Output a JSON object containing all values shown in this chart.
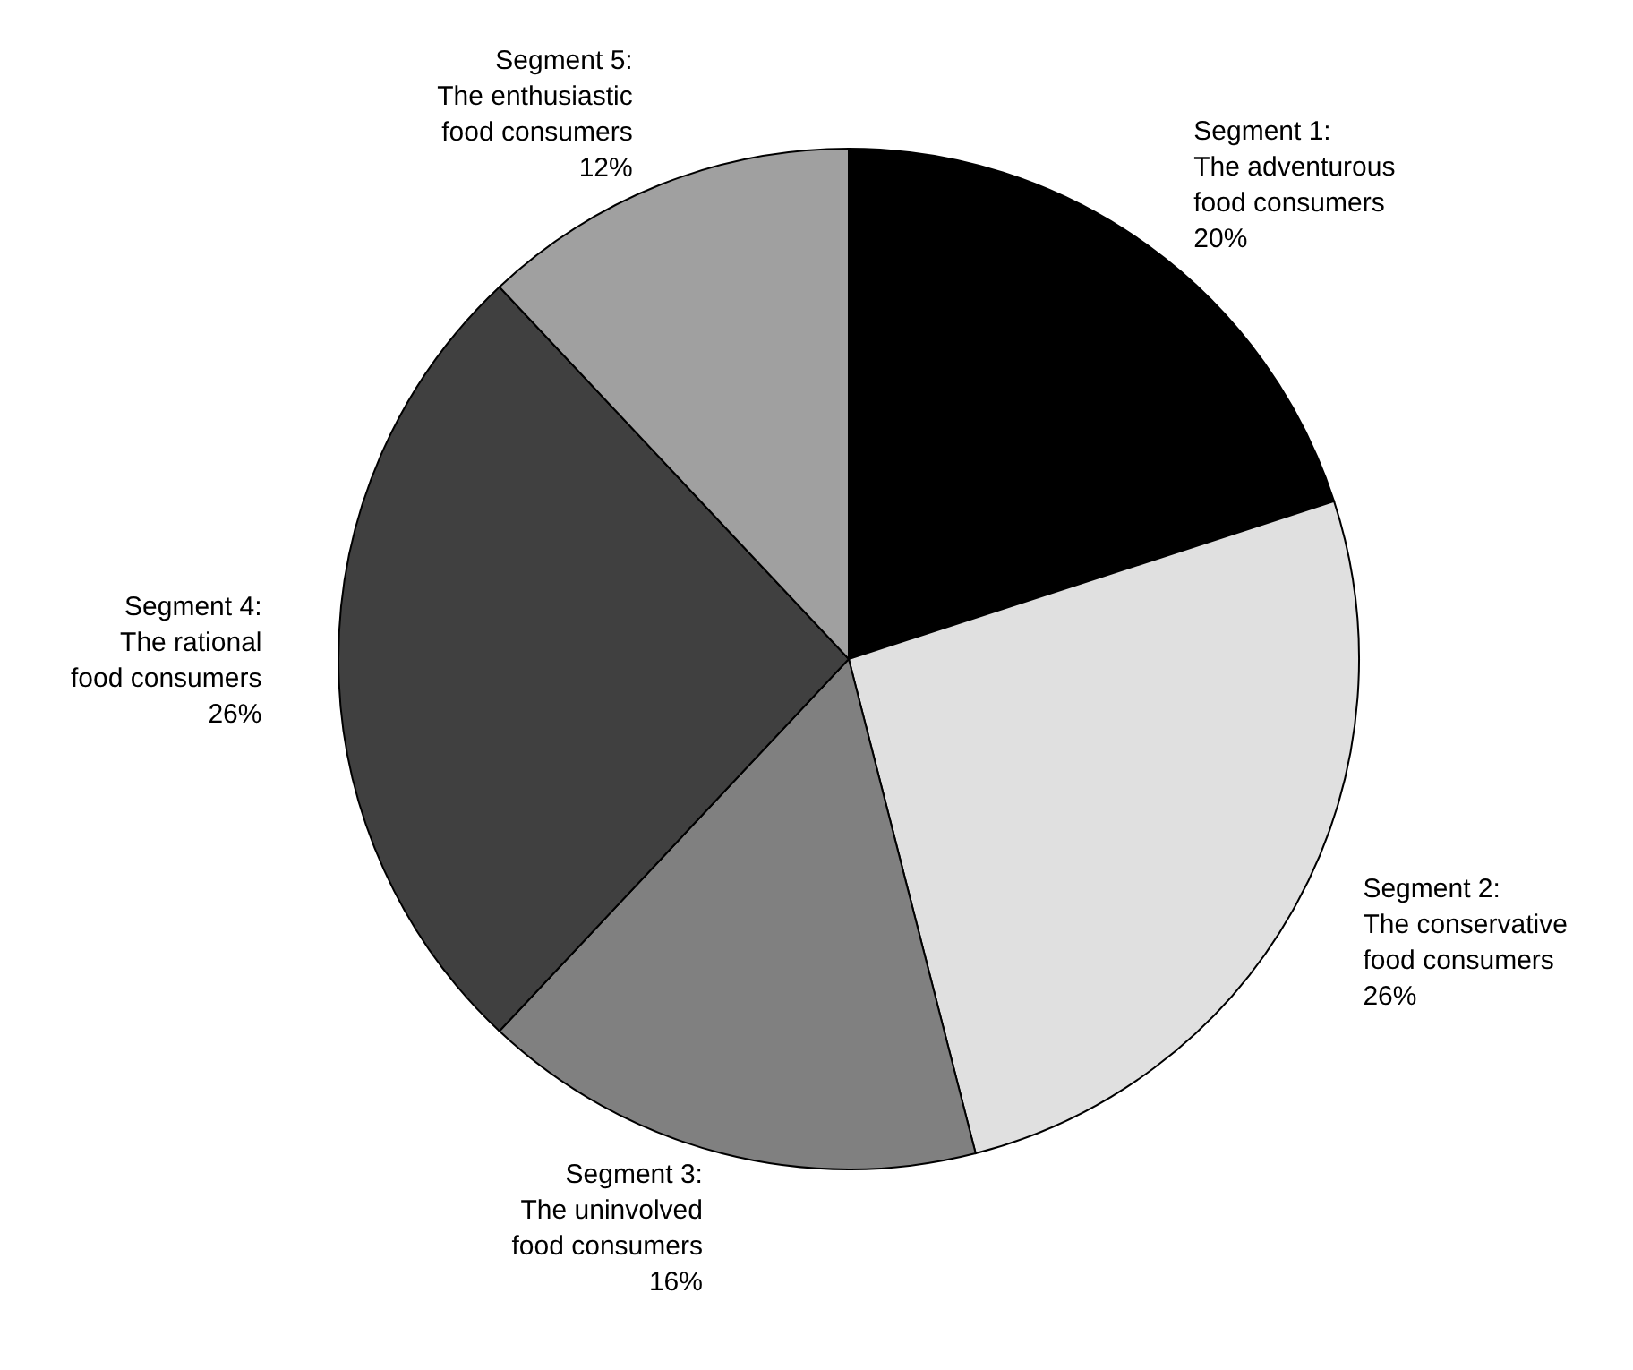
{
  "chart_data": {
    "type": "pie",
    "categories": [
      "Segment 1:\nThe adventurous\nfood consumers",
      "Segment 2:\nThe conservative\nfood consumers",
      "Segment 3:\nThe uninvolved\nfood consumers",
      "Segment 4:\nThe rational\nfood consumers",
      "Segment 5:\nThe enthusiastic\nfood consumers"
    ],
    "values": [
      20,
      26,
      16,
      26,
      12
    ],
    "value_labels": [
      "20%",
      "26%",
      "16%",
      "26%",
      "12%"
    ],
    "colors": [
      "#000000",
      "#e0e0e0",
      "#808080",
      "#404040",
      "#a0a0a0"
    ]
  }
}
